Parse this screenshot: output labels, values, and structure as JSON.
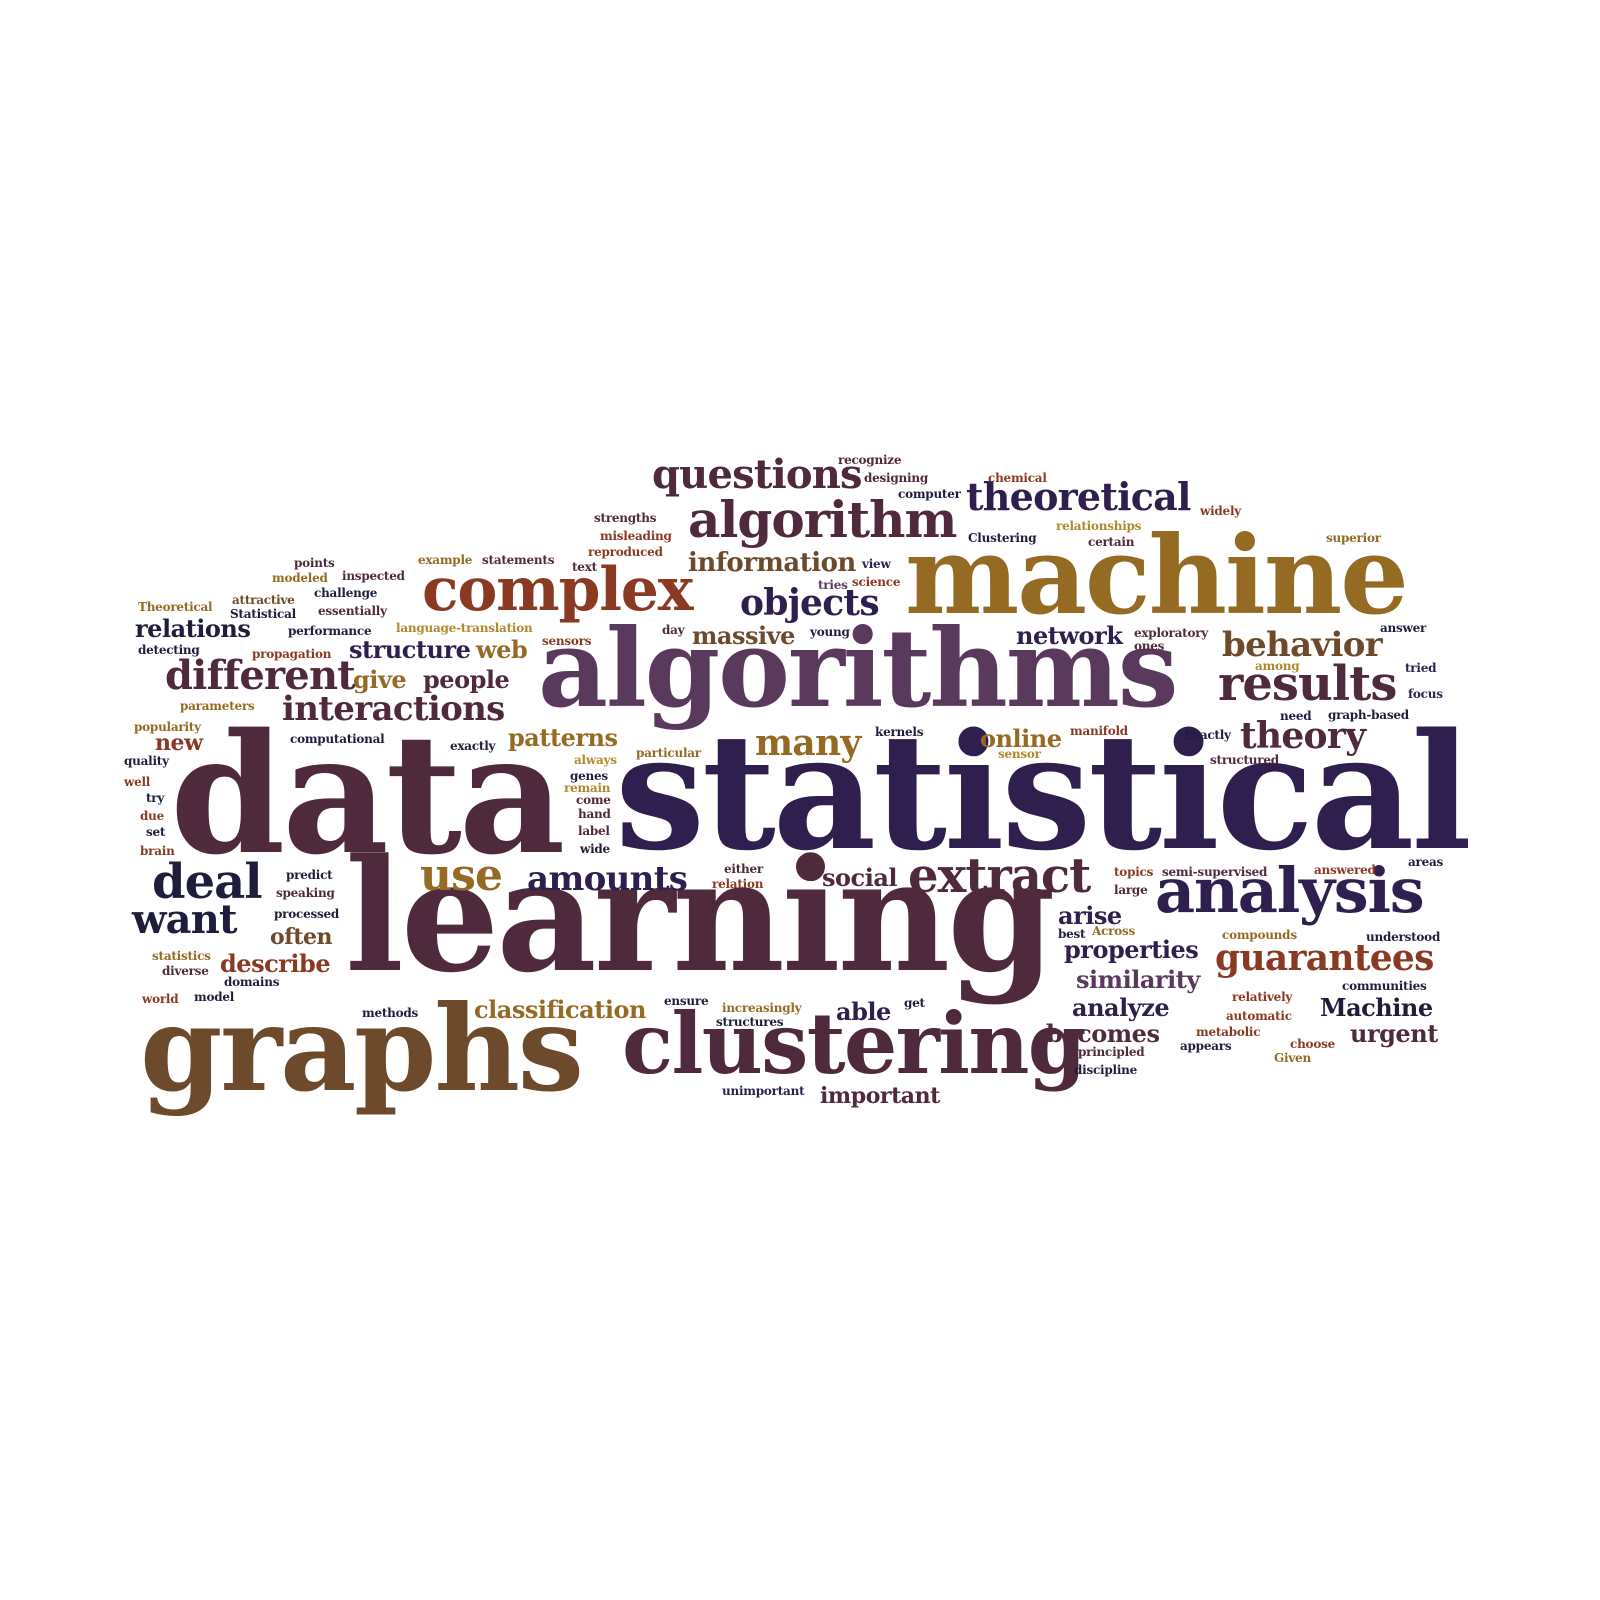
{
  "words": [
    {
      "id": "data",
      "text": "data"
    },
    {
      "id": "statistical",
      "text": "statistical"
    },
    {
      "id": "learning",
      "text": "learning"
    },
    {
      "id": "algorithms",
      "text": "algorithms"
    },
    {
      "id": "machine",
      "text": "machine"
    },
    {
      "id": "graphs",
      "text": "graphs"
    },
    {
      "id": "clustering",
      "text": "clustering"
    },
    {
      "id": "complex",
      "text": "complex"
    },
    {
      "id": "analysis",
      "text": "analysis"
    },
    {
      "id": "algorithm",
      "text": "algorithm"
    },
    {
      "id": "questions",
      "text": "questions"
    },
    {
      "id": "theoretical",
      "text": "theoretical"
    },
    {
      "id": "results",
      "text": "results"
    },
    {
      "id": "extract",
      "text": "extract"
    },
    {
      "id": "different",
      "text": "different"
    },
    {
      "id": "interactions",
      "text": "interactions"
    },
    {
      "id": "deal",
      "text": "deal"
    },
    {
      "id": "want",
      "text": "want"
    },
    {
      "id": "guarantees",
      "text": "guarantees"
    },
    {
      "id": "objects",
      "text": "objects"
    },
    {
      "id": "behavior",
      "text": "behavior"
    },
    {
      "id": "theory",
      "text": "theory"
    },
    {
      "id": "many",
      "text": "many"
    },
    {
      "id": "use",
      "text": "use"
    },
    {
      "id": "amounts",
      "text": "amounts"
    },
    {
      "id": "information",
      "text": "information"
    },
    {
      "id": "massive",
      "text": "massive"
    },
    {
      "id": "network",
      "text": "network"
    },
    {
      "id": "relations",
      "text": "relations"
    },
    {
      "id": "structure",
      "text": "structure"
    },
    {
      "id": "web",
      "text": "web"
    },
    {
      "id": "give",
      "text": "give"
    },
    {
      "id": "people",
      "text": "people"
    },
    {
      "id": "patterns",
      "text": "patterns"
    },
    {
      "id": "online",
      "text": "online"
    },
    {
      "id": "new",
      "text": "new"
    },
    {
      "id": "social",
      "text": "social"
    },
    {
      "id": "arise",
      "text": "arise"
    },
    {
      "id": "properties",
      "text": "properties"
    },
    {
      "id": "similarity",
      "text": "similarity"
    },
    {
      "id": "analyze",
      "text": "analyze"
    },
    {
      "id": "Machine_cap",
      "text": "Machine"
    },
    {
      "id": "urgent",
      "text": "urgent"
    },
    {
      "id": "becomes",
      "text": "becomes"
    },
    {
      "id": "able",
      "text": "able"
    },
    {
      "id": "classification",
      "text": "classification"
    },
    {
      "id": "describe",
      "text": "describe"
    },
    {
      "id": "often",
      "text": "often"
    },
    {
      "id": "important",
      "text": "important"
    },
    {
      "id": "recognize",
      "text": "recognize"
    },
    {
      "id": "designing",
      "text": "designing"
    },
    {
      "id": "chemical",
      "text": "chemical"
    },
    {
      "id": "computer",
      "text": "computer"
    },
    {
      "id": "strengths",
      "text": "strengths"
    },
    {
      "id": "widely",
      "text": "widely"
    },
    {
      "id": "relationships",
      "text": "relationships"
    },
    {
      "id": "misleading",
      "text": "misleading"
    },
    {
      "id": "Clustering_cap",
      "text": "Clustering"
    },
    {
      "id": "certain",
      "text": "certain"
    },
    {
      "id": "superior",
      "text": "superior"
    },
    {
      "id": "reproduced",
      "text": "reproduced"
    },
    {
      "id": "example",
      "text": "example"
    },
    {
      "id": "statements",
      "text": "statements"
    },
    {
      "id": "points",
      "text": "points"
    },
    {
      "id": "text",
      "text": "text"
    },
    {
      "id": "view",
      "text": "view"
    },
    {
      "id": "modeled",
      "text": "modeled"
    },
    {
      "id": "inspected",
      "text": "inspected"
    },
    {
      "id": "tries",
      "text": "tries"
    },
    {
      "id": "science",
      "text": "science"
    },
    {
      "id": "attractive",
      "text": "attractive"
    },
    {
      "id": "challenge",
      "text": "challenge"
    },
    {
      "id": "Theoretical_cap",
      "text": "Theoretical"
    },
    {
      "id": "Statistical_cap",
      "text": "Statistical"
    },
    {
      "id": "essentially",
      "text": "essentially"
    },
    {
      "id": "performance",
      "text": "performance"
    },
    {
      "id": "language-translation",
      "text": "language-translation"
    },
    {
      "id": "day",
      "text": "day"
    },
    {
      "id": "young",
      "text": "young"
    },
    {
      "id": "exploratory",
      "text": "exploratory"
    },
    {
      "id": "answer",
      "text": "answer"
    },
    {
      "id": "sensors",
      "text": "sensors"
    },
    {
      "id": "ones",
      "text": "ones"
    },
    {
      "id": "detecting",
      "text": "detecting"
    },
    {
      "id": "propagation",
      "text": "propagation"
    },
    {
      "id": "among",
      "text": "among"
    },
    {
      "id": "tried",
      "text": "tried"
    },
    {
      "id": "focus",
      "text": "focus"
    },
    {
      "id": "parameters",
      "text": "parameters"
    },
    {
      "id": "popularity",
      "text": "popularity"
    },
    {
      "id": "need",
      "text": "need"
    },
    {
      "id": "graph-based",
      "text": "graph-based"
    },
    {
      "id": "computational",
      "text": "computational"
    },
    {
      "id": "kernels",
      "text": "kernels"
    },
    {
      "id": "manifold",
      "text": "manifold"
    },
    {
      "id": "Exactly",
      "text": "Exactly"
    },
    {
      "id": "exactly",
      "text": "exactly"
    },
    {
      "id": "particular",
      "text": "particular"
    },
    {
      "id": "sensor",
      "text": "sensor"
    },
    {
      "id": "structured",
      "text": "structured"
    },
    {
      "id": "quality",
      "text": "quality"
    },
    {
      "id": "always",
      "text": "always"
    },
    {
      "id": "genes",
      "text": "genes"
    },
    {
      "id": "well",
      "text": "well"
    },
    {
      "id": "remain",
      "text": "remain"
    },
    {
      "id": "come",
      "text": "come"
    },
    {
      "id": "try",
      "text": "try"
    },
    {
      "id": "due",
      "text": "due"
    },
    {
      "id": "hand",
      "text": "hand"
    },
    {
      "id": "set",
      "text": "set"
    },
    {
      "id": "label",
      "text": "label"
    },
    {
      "id": "brain",
      "text": "brain"
    },
    {
      "id": "wide",
      "text": "wide"
    },
    {
      "id": "either",
      "text": "either"
    },
    {
      "id": "relation",
      "text": "relation"
    },
    {
      "id": "topics",
      "text": "topics"
    },
    {
      "id": "semi-supervised",
      "text": "semi-supervised"
    },
    {
      "id": "answered",
      "text": "answered"
    },
    {
      "id": "areas",
      "text": "areas"
    },
    {
      "id": "predict",
      "text": "predict"
    },
    {
      "id": "speaking",
      "text": "speaking"
    },
    {
      "id": "large",
      "text": "large"
    },
    {
      "id": "processed",
      "text": "processed"
    },
    {
      "id": "best",
      "text": "best"
    },
    {
      "id": "Across",
      "text": "Across"
    },
    {
      "id": "compounds",
      "text": "compounds"
    },
    {
      "id": "understood",
      "text": "understood"
    },
    {
      "id": "statistics",
      "text": "statistics"
    },
    {
      "id": "diverse",
      "text": "diverse"
    },
    {
      "id": "domains",
      "text": "domains"
    },
    {
      "id": "communities",
      "text": "communities"
    },
    {
      "id": "relatively",
      "text": "relatively"
    },
    {
      "id": "world",
      "text": "world"
    },
    {
      "id": "model",
      "text": "model"
    },
    {
      "id": "ensure",
      "text": "ensure"
    },
    {
      "id": "increasingly",
      "text": "increasingly"
    },
    {
      "id": "get",
      "text": "get"
    },
    {
      "id": "automatic",
      "text": "automatic"
    },
    {
      "id": "methods",
      "text": "methods"
    },
    {
      "id": "structures",
      "text": "structures"
    },
    {
      "id": "metabolic",
      "text": "metabolic"
    },
    {
      "id": "choose",
      "text": "choose"
    },
    {
      "id": "principled",
      "text": "principled"
    },
    {
      "id": "appears",
      "text": "appears"
    },
    {
      "id": "Given",
      "text": "Given"
    },
    {
      "id": "discipline",
      "text": "discipline"
    },
    {
      "id": "unimportant",
      "text": "unimportant"
    }
  ]
}
